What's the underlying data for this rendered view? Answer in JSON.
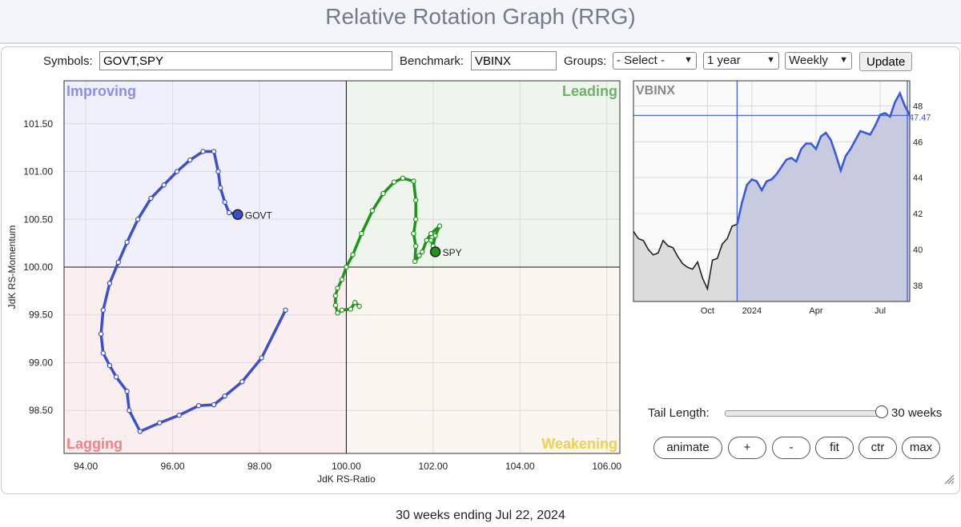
{
  "page": {
    "title": "Relative Rotation Graph (RRG)",
    "footer": "30 weeks ending Jul 22, 2024"
  },
  "controls": {
    "symbols_label": "Symbols:",
    "symbols_value": "GOVT,SPY",
    "benchmark_label": "Benchmark:",
    "benchmark_value": "VBINX",
    "groups_label": "Groups:",
    "groups_value": "- Select -",
    "period_value": "1 year",
    "frequency_value": "Weekly",
    "update_label": "Update",
    "tail_label": "Tail Length:",
    "tail_value_text": "30 weeks",
    "tail_fraction": 1.0,
    "buttons": [
      "animate",
      "+",
      "-",
      "fit",
      "ctr",
      "max"
    ]
  },
  "chart_data": [
    {
      "type": "scatter",
      "xlabel": "JdK RS-Ratio",
      "ylabel": "JdK RS-Momentum",
      "xlim": [
        93.5,
        106.3
      ],
      "ylim": [
        98.05,
        101.95
      ],
      "xticks": [
        "94.00",
        "96.00",
        "98.00",
        "100.00",
        "102.00",
        "104.00",
        "106.00"
      ],
      "yticks": [
        "98.50",
        "99.00",
        "99.50",
        "100.00",
        "100.50",
        "101.00",
        "101.50"
      ],
      "quadrants": [
        {
          "name": "Improving",
          "color": "#8c8fe6",
          "bg": "#eff0fb"
        },
        {
          "name": "Leading",
          "color": "#6fb169",
          "bg": "#edf5ec"
        },
        {
          "name": "Lagging",
          "color": "#f08484",
          "bg": "#fbeeee"
        },
        {
          "name": "Weakening",
          "color": "#f1d04b",
          "bg": "#f9f7f0"
        }
      ],
      "series": [
        {
          "name": "GOVT",
          "color": "#3a4fd1",
          "points": [
            [
              98.6,
              99.55
            ],
            [
              98.05,
              99.05
            ],
            [
              97.6,
              98.8
            ],
            [
              97.2,
              98.65
            ],
            [
              96.95,
              98.56
            ],
            [
              96.6,
              98.55
            ],
            [
              96.15,
              98.45
            ],
            [
              95.7,
              98.37
            ],
            [
              95.25,
              98.28
            ],
            [
              95.0,
              98.5
            ],
            [
              94.95,
              98.7
            ],
            [
              94.7,
              98.85
            ],
            [
              94.55,
              98.97
            ],
            [
              94.4,
              99.1
            ],
            [
              94.35,
              99.3
            ],
            [
              94.4,
              99.55
            ],
            [
              94.55,
              99.83
            ],
            [
              94.75,
              100.05
            ],
            [
              94.95,
              100.26
            ],
            [
              95.2,
              100.5
            ],
            [
              95.5,
              100.72
            ],
            [
              95.8,
              100.86
            ],
            [
              96.1,
              101.0
            ],
            [
              96.4,
              101.12
            ],
            [
              96.7,
              101.21
            ],
            [
              96.95,
              101.21
            ],
            [
              97.05,
              101.0
            ],
            [
              97.1,
              100.83
            ],
            [
              97.2,
              100.68
            ],
            [
              97.3,
              100.57
            ],
            [
              97.5,
              100.55
            ]
          ]
        },
        {
          "name": "SPY",
          "color": "#1e9419",
          "points": [
            [
              100.3,
              99.59
            ],
            [
              100.2,
              99.63
            ],
            [
              100.1,
              99.56
            ],
            [
              99.9,
              99.55
            ],
            [
              99.8,
              99.52
            ],
            [
              99.75,
              99.6
            ],
            [
              99.75,
              99.7
            ],
            [
              99.8,
              99.78
            ],
            [
              99.9,
              99.87
            ],
            [
              100.0,
              100.0
            ],
            [
              100.15,
              100.13
            ],
            [
              100.35,
              100.35
            ],
            [
              100.6,
              100.59
            ],
            [
              100.85,
              100.77
            ],
            [
              101.1,
              100.89
            ],
            [
              101.3,
              100.93
            ],
            [
              101.55,
              100.9
            ],
            [
              101.6,
              100.7
            ],
            [
              101.6,
              100.5
            ],
            [
              101.55,
              100.35
            ],
            [
              101.6,
              100.22
            ],
            [
              101.58,
              100.06
            ],
            [
              101.68,
              100.12
            ],
            [
              101.75,
              100.16
            ],
            [
              101.85,
              100.28
            ],
            [
              101.95,
              100.35
            ],
            [
              102.15,
              100.43
            ],
            [
              102.05,
              100.33
            ],
            [
              102.0,
              100.22
            ],
            [
              101.95,
              100.28
            ],
            [
              102.05,
              100.16
            ]
          ]
        }
      ]
    },
    {
      "type": "area",
      "title": "VBINX",
      "x_tick_labels": [
        "Oct",
        "2024",
        "Apr",
        "Jul"
      ],
      "y_ticks": [
        38,
        40,
        42,
        44,
        46,
        48
      ],
      "ylim": [
        37.1,
        49.4
      ],
      "current_value": "47.47",
      "highlight_start_index": 21,
      "color_before": "#222222",
      "color_after": "#3b5bd6",
      "values": [
        41.0,
        40.6,
        40.5,
        40.0,
        39.7,
        39.8,
        40.5,
        40.2,
        40.1,
        39.6,
        39.2,
        39.0,
        38.9,
        39.3,
        38.4,
        37.8,
        39.4,
        39.5,
        40.3,
        40.6,
        41.3,
        41.4,
        42.6,
        43.6,
        43.9,
        43.8,
        43.3,
        43.8,
        43.9,
        44.2,
        44.6,
        45.0,
        45.1,
        44.9,
        45.6,
        45.9,
        45.9,
        45.6,
        46.3,
        46.5,
        46.1,
        45.3,
        44.4,
        45.2,
        45.6,
        46.1,
        46.6,
        46.5,
        46.4,
        46.9,
        47.5,
        47.6,
        47.4,
        48.2,
        48.7,
        48.0,
        47.5
      ]
    }
  ]
}
